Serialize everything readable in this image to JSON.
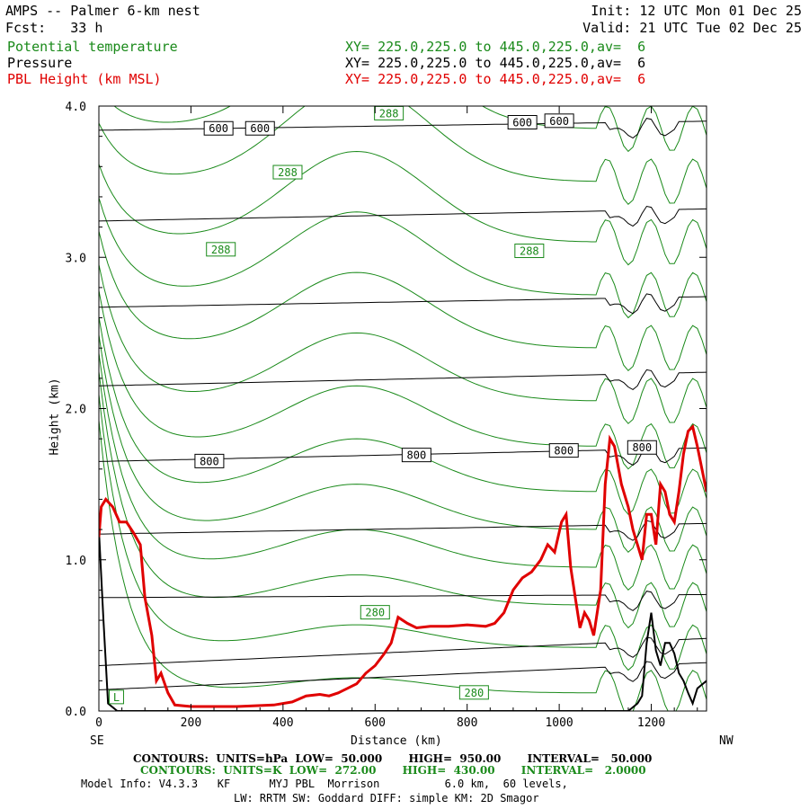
{
  "header": {
    "title": "AMPS -- Palmer 6-km nest",
    "forecast": "Fcst:   33 h",
    "init": "Init: 12 UTC Mon 01 Dec 25",
    "valid": "Valid: 21 UTC Tue 02 Dec 25",
    "fields": [
      {
        "name": "Potential temperature",
        "xy": "XY= 225.0,225.0 to 445.0,225.0,av=  6",
        "color": "#1a8a1a"
      },
      {
        "name": "Pressure",
        "xy": "XY= 225.0,225.0 to 445.0,225.0,av=  6",
        "color": "#000000"
      },
      {
        "name": "PBL Height (km MSL)",
        "xy": "XY= 225.0,225.0 to 445.0,225.0,av=  6",
        "color": "#e00000"
      }
    ]
  },
  "axes": {
    "xlabel": "Distance (km)",
    "ylabel": "Height (km)",
    "left_end": "SE",
    "right_end": "NW",
    "x_ticks": [
      "0",
      "200",
      "400",
      "600",
      "800",
      "1000",
      "1200"
    ],
    "y_ticks": [
      "0.0",
      "1.0",
      "2.0",
      "3.0",
      "4.0"
    ]
  },
  "footer": {
    "line1": "CONTOURS:  UNITS=hPa  LOW=  50.000       HIGH=  950.00       INTERVAL=   50.000",
    "line2": "CONTOURS:  UNITS=K  LOW=  272.00       HIGH=  430.00       INTERVAL=   2.0000",
    "line3": "Model Info: V4.3.3   KF      MYJ PBL  Morrison          6.0 km,  60 levels,",
    "line4": "LW: RRTM SW: Goddard DIFF: simple KM: 2D Smagor"
  },
  "chart_data": {
    "type": "line",
    "xlim": [
      0,
      1320
    ],
    "ylim": [
      0,
      4
    ],
    "x_ticks": [
      0,
      200,
      400,
      600,
      800,
      1000,
      1200
    ],
    "y_ticks": [
      0,
      1,
      2,
      3,
      4
    ],
    "pressure_labels": [
      {
        "text": "600",
        "x": 260,
        "y": 3.85
      },
      {
        "text": "600",
        "x": 350,
        "y": 3.85
      },
      {
        "text": "600",
        "x": 920,
        "y": 3.89
      },
      {
        "text": "600",
        "x": 1000,
        "y": 3.9
      },
      {
        "text": "800",
        "x": 240,
        "y": 1.65
      },
      {
        "text": "800",
        "x": 690,
        "y": 1.69
      },
      {
        "text": "800",
        "x": 1010,
        "y": 1.72
      },
      {
        "text": "800",
        "x": 1180,
        "y": 1.74
      }
    ],
    "theta_labels": [
      {
        "text": "288",
        "x": 630,
        "y": 3.95
      },
      {
        "text": "288",
        "x": 410,
        "y": 3.56
      },
      {
        "text": "288",
        "x": 265,
        "y": 3.05
      },
      {
        "text": "288",
        "x": 935,
        "y": 3.04
      },
      {
        "text": "280",
        "x": 600,
        "y": 0.65
      },
      {
        "text": "280",
        "x": 815,
        "y": 0.12
      },
      {
        "text": "L",
        "x": 38,
        "y": 0.09
      }
    ],
    "series": [
      {
        "name": "PBL Height (km MSL)",
        "color": "#e00000",
        "points": [
          [
            0,
            1.15
          ],
          [
            5,
            1.35
          ],
          [
            15,
            1.4
          ],
          [
            30,
            1.35
          ],
          [
            45,
            1.25
          ],
          [
            60,
            1.25
          ],
          [
            75,
            1.18
          ],
          [
            90,
            1.1
          ],
          [
            100,
            0.75
          ],
          [
            115,
            0.5
          ],
          [
            125,
            0.2
          ],
          [
            135,
            0.25
          ],
          [
            150,
            0.12
          ],
          [
            165,
            0.04
          ],
          [
            200,
            0.03
          ],
          [
            300,
            0.03
          ],
          [
            380,
            0.04
          ],
          [
            420,
            0.06
          ],
          [
            450,
            0.1
          ],
          [
            480,
            0.11
          ],
          [
            500,
            0.1
          ],
          [
            520,
            0.12
          ],
          [
            540,
            0.15
          ],
          [
            560,
            0.18
          ],
          [
            580,
            0.25
          ],
          [
            600,
            0.3
          ],
          [
            620,
            0.38
          ],
          [
            635,
            0.45
          ],
          [
            650,
            0.62
          ],
          [
            670,
            0.58
          ],
          [
            690,
            0.55
          ],
          [
            720,
            0.56
          ],
          [
            760,
            0.56
          ],
          [
            800,
            0.57
          ],
          [
            840,
            0.56
          ],
          [
            860,
            0.58
          ],
          [
            880,
            0.65
          ],
          [
            900,
            0.8
          ],
          [
            920,
            0.88
          ],
          [
            940,
            0.92
          ],
          [
            960,
            1.0
          ],
          [
            975,
            1.1
          ],
          [
            990,
            1.05
          ],
          [
            1005,
            1.25
          ],
          [
            1015,
            1.3
          ],
          [
            1025,
            0.95
          ],
          [
            1035,
            0.75
          ],
          [
            1045,
            0.55
          ],
          [
            1055,
            0.65
          ],
          [
            1065,
            0.6
          ],
          [
            1075,
            0.5
          ],
          [
            1090,
            0.8
          ],
          [
            1100,
            1.5
          ],
          [
            1110,
            1.8
          ],
          [
            1120,
            1.75
          ],
          [
            1135,
            1.5
          ],
          [
            1150,
            1.35
          ],
          [
            1160,
            1.2
          ],
          [
            1170,
            1.1
          ],
          [
            1180,
            1.0
          ],
          [
            1190,
            1.3
          ],
          [
            1200,
            1.3
          ],
          [
            1210,
            1.1
          ],
          [
            1220,
            1.5
          ],
          [
            1230,
            1.45
          ],
          [
            1240,
            1.3
          ],
          [
            1250,
            1.25
          ],
          [
            1260,
            1.45
          ],
          [
            1270,
            1.7
          ],
          [
            1280,
            1.85
          ],
          [
            1290,
            1.88
          ],
          [
            1300,
            1.75
          ],
          [
            1310,
            1.6
          ],
          [
            1320,
            1.45
          ]
        ]
      }
    ]
  }
}
